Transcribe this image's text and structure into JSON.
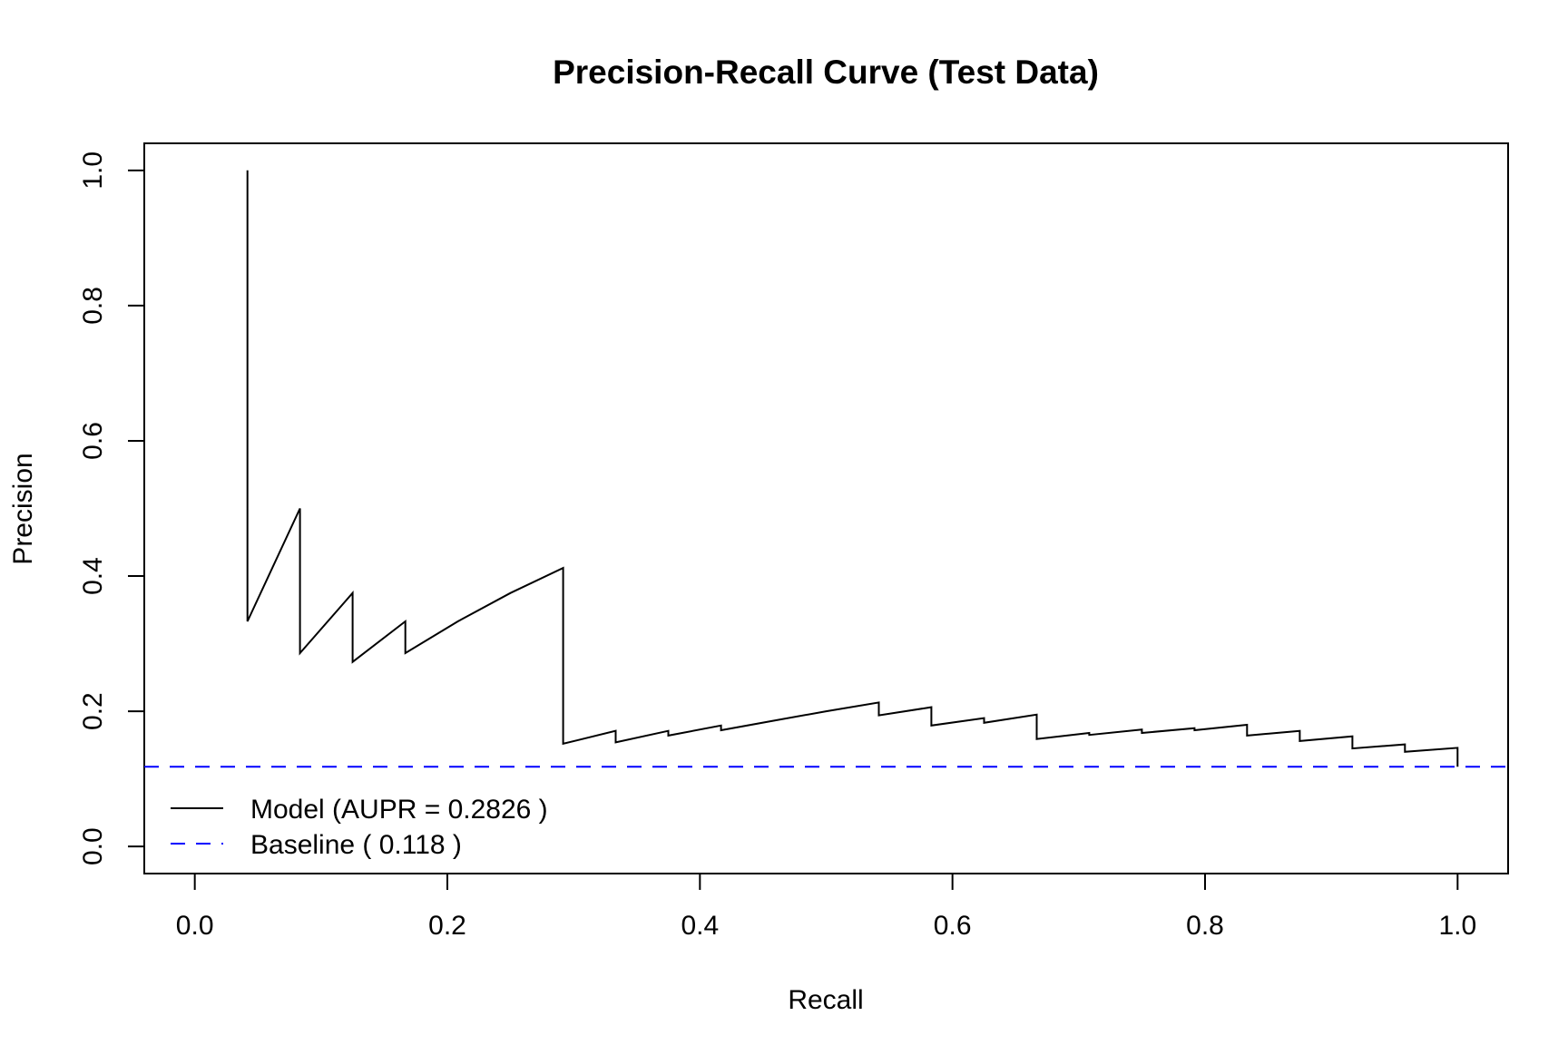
{
  "chart_data": {
    "type": "line",
    "title": "Precision-Recall Curve (Test Data)",
    "xlabel": "Recall",
    "ylabel": "Precision",
    "xlim": [
      -0.04,
      1.04
    ],
    "ylim": [
      -0.04,
      1.04
    ],
    "xticks": [
      "0.0",
      "0.2",
      "0.4",
      "0.6",
      "0.8",
      "1.0"
    ],
    "yticks": [
      "0.0",
      "0.2",
      "0.4",
      "0.6",
      "0.8",
      "1.0"
    ],
    "grid": false,
    "legend_position": "bottom-left",
    "series": [
      {
        "name": "Model (AUPR = 0.2826 )",
        "color": "#000000",
        "style": "solid",
        "x": [
          0.0417,
          0.0417,
          0.0833,
          0.0833,
          0.125,
          0.125,
          0.1667,
          0.1667,
          0.2083,
          0.25,
          0.2917,
          0.2917,
          0.3333,
          0.3333,
          0.375,
          0.375,
          0.4167,
          0.4167,
          0.4583,
          0.5,
          0.5417,
          0.5417,
          0.5833,
          0.5833,
          0.625,
          0.625,
          0.6667,
          0.6667,
          0.7083,
          0.7083,
          0.75,
          0.75,
          0.7917,
          0.7917,
          0.8333,
          0.8333,
          0.875,
          0.875,
          0.9167,
          0.9167,
          0.9583,
          0.9583,
          1.0,
          1.0
        ],
        "y": [
          1.0,
          0.333,
          0.5,
          0.286,
          0.375,
          0.273,
          0.333,
          0.286,
          0.333,
          0.375,
          0.412,
          0.152,
          0.171,
          0.154,
          0.171,
          0.164,
          0.179,
          0.172,
          0.186,
          0.2,
          0.213,
          0.194,
          0.206,
          0.179,
          0.19,
          0.183,
          0.195,
          0.159,
          0.168,
          0.165,
          0.173,
          0.168,
          0.175,
          0.172,
          0.18,
          0.164,
          0.171,
          0.156,
          0.163,
          0.145,
          0.151,
          0.14,
          0.146,
          0.118
        ]
      },
      {
        "name": "Baseline ( 0.118 )",
        "color": "#0000ff",
        "style": "dashed",
        "y": 0.118
      }
    ]
  }
}
